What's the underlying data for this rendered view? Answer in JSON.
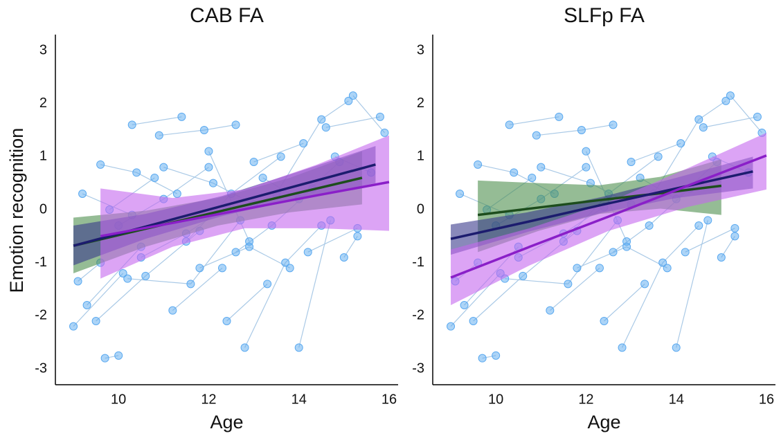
{
  "chart_data": {
    "type": "scatter-panels",
    "xlabel": "Age",
    "ylabel": "Emotion recognition",
    "xlim": [
      8.6,
      16.2
    ],
    "ylim": [
      -3.3,
      3.3
    ],
    "xticks": [
      10,
      12,
      14,
      16
    ],
    "yticks": [
      -3,
      -2,
      -1,
      0,
      1,
      2,
      3
    ],
    "point_color": "#5aa9f0",
    "link_color": "#a9c9e6",
    "subjects": [
      {
        "x": [
          9.0,
          10.1
        ],
        "y": [
          -2.2,
          -1.2
        ]
      },
      {
        "x": [
          9.1,
          9.6
        ],
        "y": [
          -1.35,
          -1.0
        ]
      },
      {
        "x": [
          9.3,
          10.5
        ],
        "y": [
          -1.8,
          -0.7
        ]
      },
      {
        "x": [
          9.6,
          10.4,
          11.3
        ],
        "y": [
          0.85,
          0.7,
          0.3
        ]
      },
      {
        "x": [
          9.7,
          10.0
        ],
        "y": [
          -2.8,
          -2.75
        ]
      },
      {
        "x": [
          10.3,
          11.4
        ],
        "y": [
          1.6,
          1.75
        ]
      },
      {
        "x": [
          9.5,
          10.6,
          11.8
        ],
        "y": [
          -2.1,
          -1.25,
          -0.4
        ]
      },
      {
        "x": [
          10.0,
          11.0,
          12.0
        ],
        "y": [
          -0.3,
          0.2,
          0.8
        ]
      },
      {
        "x": [
          10.9,
          11.9,
          12.6
        ],
        "y": [
          1.4,
          1.5,
          1.6
        ]
      },
      {
        "x": [
          11.2,
          12.3
        ],
        "y": [
          -1.9,
          -1.1
        ]
      },
      {
        "x": [
          11.5,
          12.5,
          13.6
        ],
        "y": [
          -0.6,
          0.3,
          1.0
        ]
      },
      {
        "x": [
          12.0,
          12.9
        ],
        "y": [
          1.1,
          -0.6
        ]
      },
      {
        "x": [
          12.4,
          13.3
        ],
        "y": [
          -2.1,
          -1.4
        ]
      },
      {
        "x": [
          12.8,
          13.7,
          14.5
        ],
        "y": [
          -2.6,
          -1.0,
          -0.3
        ]
      },
      {
        "x": [
          13.0,
          14.1
        ],
        "y": [
          0.9,
          1.25
        ]
      },
      {
        "x": [
          13.5,
          14.5,
          15.1
        ],
        "y": [
          0.3,
          1.7,
          2.05
        ]
      },
      {
        "x": [
          14.0,
          14.7
        ],
        "y": [
          -2.6,
          -0.2
        ]
      },
      {
        "x": [
          14.2,
          15.3
        ],
        "y": [
          -0.8,
          -0.35
        ]
      },
      {
        "x": [
          14.6,
          15.8
        ],
        "y": [
          1.55,
          1.75
        ]
      },
      {
        "x": [
          15.2,
          15.9
        ],
        "y": [
          2.15,
          1.45
        ]
      },
      {
        "x": [
          15.0,
          15.3
        ],
        "y": [
          -0.9,
          -0.5
        ]
      },
      {
        "x": [
          10.5,
          11.5,
          12.4
        ],
        "y": [
          -0.9,
          -0.45,
          0.05
        ]
      },
      {
        "x": [
          11.0,
          12.1,
          13.0
        ],
        "y": [
          0.8,
          0.5,
          0.1
        ]
      },
      {
        "x": [
          12.6,
          13.4,
          14.3
        ],
        "y": [
          -0.8,
          -0.3,
          0.4
        ]
      },
      {
        "x": [
          9.8,
          10.8
        ],
        "y": [
          0.0,
          0.6
        ]
      },
      {
        "x": [
          10.2,
          11.6,
          12.7
        ],
        "y": [
          -1.3,
          -1.4,
          -0.2
        ]
      },
      {
        "x": [
          13.2,
          14.0,
          14.9
        ],
        "y": [
          0.6,
          0.2,
          0.9
        ]
      },
      {
        "x": [
          11.8,
          12.9,
          13.8
        ],
        "y": [
          -1.1,
          -0.7,
          -1.1
        ]
      },
      {
        "x": [
          9.2,
          10.3
        ],
        "y": [
          0.3,
          -0.1
        ]
      },
      {
        "x": [
          14.8,
          15.6
        ],
        "y": [
          1.0,
          0.7
        ]
      }
    ],
    "panels": [
      {
        "title": "CAB FA",
        "fits": [
          {
            "color": "#4f8f4f",
            "line_color": "#1d4d1d",
            "x": [
              9.0,
              10.6,
              12.2,
              13.8,
              15.4
            ],
            "values": [
              -0.68,
              -0.36,
              -0.04,
              0.28,
              0.6
            ],
            "lower": [
              -1.2,
              -0.7,
              -0.3,
              -0.05,
              0.1
            ],
            "upper": [
              -0.15,
              -0.02,
              0.22,
              0.6,
              1.1
            ]
          },
          {
            "color": "#3a3a8c",
            "line_color": "#1c1c6e",
            "x": [
              9.0,
              10.6,
              12.3,
              14.0,
              15.7
            ],
            "values": [
              -0.68,
              -0.32,
              0.07,
              0.46,
              0.85
            ],
            "lower": [
              -1.05,
              -0.55,
              -0.12,
              0.22,
              0.5
            ],
            "upper": [
              -0.3,
              -0.08,
              0.26,
              0.72,
              1.2
            ]
          },
          {
            "color": "#c468ee",
            "line_color": "#8a1fc8",
            "x": [
              9.6,
              11.2,
              12.8,
              14.4,
              16.0
            ],
            "values": [
              -0.5,
              -0.25,
              0.01,
              0.27,
              0.52
            ],
            "lower": [
              -1.3,
              -0.7,
              -0.35,
              -0.35,
              -0.4
            ],
            "upper": [
              0.4,
              0.22,
              0.38,
              0.85,
              1.4
            ]
          }
        ]
      },
      {
        "title": "SLFp FA",
        "fits": [
          {
            "color": "#4f8f4f",
            "line_color": "#1d4d1d",
            "x": [
              9.6,
              10.95,
              12.3,
              13.65,
              15.0
            ],
            "values": [
              -0.1,
              0.04,
              0.18,
              0.31,
              0.45
            ],
            "lower": [
              -0.8,
              -0.4,
              -0.08,
              0.02,
              -0.1
            ],
            "upper": [
              0.55,
              0.5,
              0.46,
              0.62,
              0.95
            ]
          },
          {
            "color": "#3a3a8c",
            "line_color": "#1c1c6e",
            "x": [
              9.0,
              10.7,
              12.35,
              14.0,
              15.7
            ],
            "values": [
              -0.55,
              -0.23,
              0.09,
              0.4,
              0.72
            ],
            "lower": [
              -0.85,
              -0.42,
              -0.06,
              0.22,
              0.4
            ],
            "upper": [
              -0.28,
              -0.05,
              0.24,
              0.6,
              1.0
            ]
          },
          {
            "color": "#c468ee",
            "line_color": "#8a1fc8",
            "x": [
              9.0,
              10.75,
              12.5,
              14.25,
              16.0
            ],
            "values": [
              -1.28,
              -0.7,
              -0.13,
              0.45,
              1.02
            ],
            "lower": [
              -1.8,
              -1.05,
              -0.4,
              0.05,
              0.38
            ],
            "upper": [
              -0.75,
              -0.35,
              0.14,
              0.78,
              1.45
            ]
          }
        ]
      }
    ]
  }
}
